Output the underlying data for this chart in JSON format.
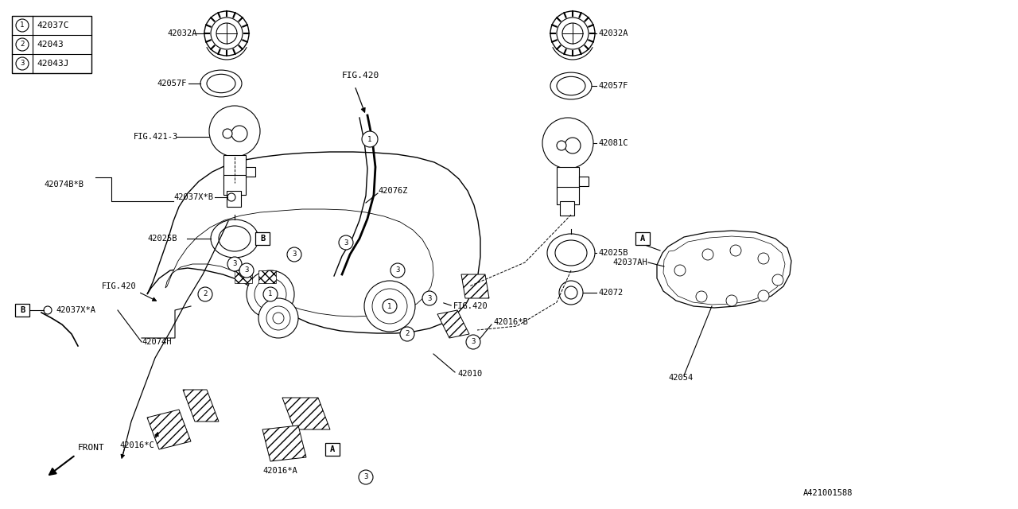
{
  "bg_color": "#ffffff",
  "line_color": "#000000",
  "legend": [
    {
      "num": "1",
      "code": "42037C"
    },
    {
      "num": "2",
      "code": "42043"
    },
    {
      "num": "3",
      "code": "42043J"
    }
  ],
  "fig_w": 12.8,
  "fig_h": 6.4,
  "dpi": 100
}
